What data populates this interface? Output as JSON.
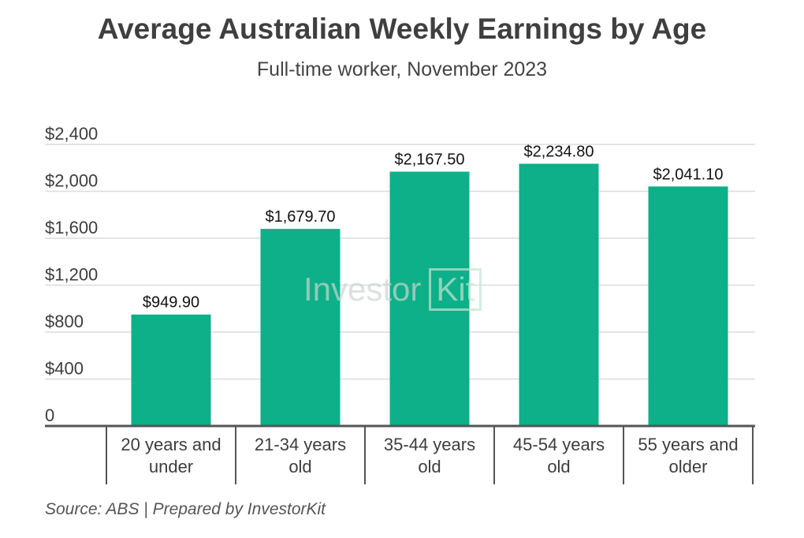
{
  "chart_data": {
    "type": "bar",
    "title": "Average Australian Weekly Earnings by Age",
    "subtitle": "Full-time worker, November 2023",
    "categories": [
      [
        "20 years and",
        "under"
      ],
      [
        "21-34 years",
        "old"
      ],
      [
        "35-44 years",
        "old"
      ],
      [
        "45-54 years",
        "old"
      ],
      [
        "55 years and",
        "older"
      ]
    ],
    "values": [
      949.9,
      1679.7,
      2167.5,
      2234.8,
      2041.1
    ],
    "value_labels": [
      "$949.90",
      "$1,679.70",
      "$2,167.50",
      "$2,234.80",
      "$2,041.10"
    ],
    "y_ticks": [
      0,
      400,
      800,
      1200,
      1600,
      2000,
      2400
    ],
    "y_tick_labels": [
      "0",
      "$400",
      "$800",
      "$1,200",
      "$1,600",
      "$2,000",
      "$2,400"
    ],
    "ylim": [
      0,
      2400
    ],
    "xlabel": "",
    "ylabel": "",
    "grid": true,
    "bar_color": "#0db088",
    "grid_color": "#dcdcdc",
    "axis_color": "#555555"
  },
  "source": "Source: ABS | Prepared by InvestorKit",
  "watermark": {
    "word": "Investor",
    "box": "Kit"
  }
}
